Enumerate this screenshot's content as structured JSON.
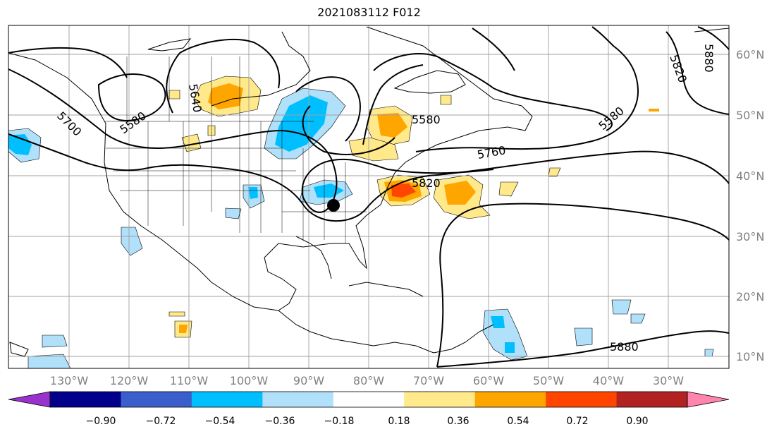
{
  "title": "2021083112 F012",
  "longitude_labels": [
    "130°W",
    "120°W",
    "110°W",
    "100°W",
    "90°W",
    "80°W",
    "70°W",
    "60°W",
    "50°W",
    "40°W",
    "30°W"
  ],
  "latitude_labels": [
    "60°N",
    "50°N",
    "40°N",
    "30°N",
    "20°N",
    "10°N"
  ],
  "colorbar": {
    "tick_labels": [
      "−0.90",
      "−0.72",
      "−0.54",
      "−0.36",
      "−0.18",
      "0.18",
      "0.36",
      "0.54",
      "0.72",
      "0.90"
    ],
    "colors": [
      "#9932cc",
      "#00008b",
      "#3a5fcd",
      "#00bfff",
      "#b0e0fa",
      "#ffffff",
      "#ffe98a",
      "#ffa500",
      "#ff4500",
      "#b22222",
      "#ff85ad"
    ]
  },
  "contour_labels": [
    "5640",
    "5580",
    "5700",
    "5580",
    "5760",
    "5820",
    "5580",
    "5820",
    "5880",
    "5880"
  ],
  "marker": {
    "icon": "black-dot-marker"
  },
  "colors": {
    "contour": "#000000",
    "grid": "#a0a0a0",
    "coast": "#000000"
  }
}
